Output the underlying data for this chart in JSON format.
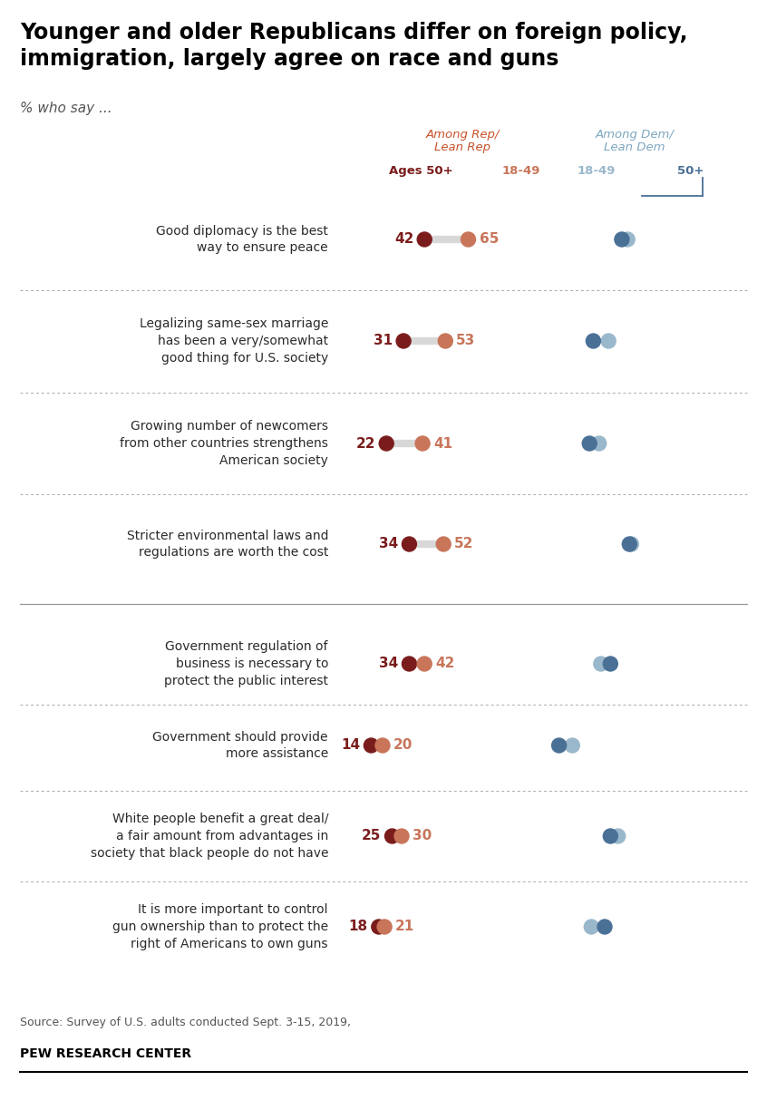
{
  "title": "Younger and older Republicans differ on foreign policy,\nimmigration, largely agree on race and guns",
  "subtitle": "% who say ...",
  "source": "Source: Survey of U.S. adults conducted Sept. 3-15, 2019,",
  "footer": "PEW RESEARCH CENTER",
  "rows": [
    {
      "label": "Good diplomacy is the best\nway to ensure peace",
      "rep_50plus": 42,
      "rep_18_49": 65,
      "dem_18_49": 82,
      "dem_50plus": 79,
      "solid_line": false
    },
    {
      "label": "Legalizing same-sex marriage\nhas been a very/somewhat\ngood thing for U.S. society",
      "rep_50plus": 31,
      "rep_18_49": 53,
      "dem_18_49": 72,
      "dem_50plus": 64,
      "solid_line": false
    },
    {
      "label": "Growing number of newcomers\nfrom other countries strengthens\nAmerican society",
      "rep_50plus": 22,
      "rep_18_49": 41,
      "dem_18_49": 67,
      "dem_50plus": 62,
      "solid_line": false
    },
    {
      "label": "Stricter environmental laws and\nregulations are worth the cost",
      "rep_50plus": 34,
      "rep_18_49": 52,
      "dem_18_49": 84,
      "dem_50plus": 83,
      "solid_line": true
    },
    {
      "label": "Government regulation of\nbusiness is necessary to\nprotect the public interest",
      "rep_50plus": 34,
      "rep_18_49": 42,
      "dem_18_49": 68,
      "dem_50plus": 73,
      "solid_line": false
    },
    {
      "label": "Government should provide\nmore assistance",
      "rep_50plus": 14,
      "rep_18_49": 20,
      "dem_18_49": 53,
      "dem_50plus": 46,
      "solid_line": false
    },
    {
      "label": "White people benefit a great deal/\na fair amount from advantages in\nsociety that black people do not have",
      "rep_50plus": 25,
      "rep_18_49": 30,
      "dem_18_49": 77,
      "dem_50plus": 73,
      "solid_line": false
    },
    {
      "label": "It is more important to control\ngun ownership than to protect the\nright of Americans to own guns",
      "rep_50plus": 18,
      "rep_18_49": 21,
      "dem_18_49": 63,
      "dem_50plus": 70,
      "solid_line": false
    }
  ],
  "rep_50plus_color": "#7b1c1c",
  "rep_18_49_color": "#c8755a",
  "dem_18_49_color": "#9ab8cc",
  "dem_50plus_color": "#4a7096",
  "line_color": "#d8d8d8",
  "rep_header_color": "#c8522a",
  "dem_header_color": "#7da7c0",
  "dem_50plus_label_color": "#4a7096",
  "title_fontsize": 17,
  "subtitle_fontsize": 11,
  "label_fontsize": 10,
  "value_fontsize": 11
}
